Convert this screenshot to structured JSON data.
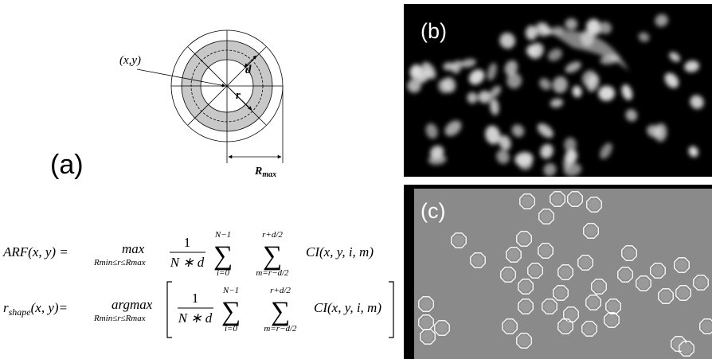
{
  "diagram": {
    "point_label": "(x,y)",
    "d_label": "d",
    "r_label": "r",
    "rmax_label": "R",
    "rmax_sub": "max",
    "panel_label": "(a)"
  },
  "panels": {
    "b": "(b)",
    "c": "(c)"
  },
  "sigma": "∑",
  "equation1": {
    "lhs": "ARF(x, y) =",
    "op": "max",
    "op_sub": "Rmin≤r≤Rmax",
    "num": "1",
    "den": "N ∗ d",
    "sum1_top": "N−1",
    "sum1_bottom": "i=0",
    "sum2_top": "r+d/2",
    "sum2_bottom": "m=r−d/2",
    "term": "CI(x, y, i, m)"
  },
  "equation2": {
    "lhs": "r",
    "lhs_sub": "shape",
    "lhs_rest": "(x, y)=",
    "op": "argmax",
    "op_sub": "Rmin≤r≤Rmax",
    "num": "1",
    "den": "N ∗ d",
    "sum1_top": "N−1",
    "sum1_bottom": "i=0",
    "sum2_top": "r+d/2",
    "sum2_bottom": "m=r−d/2",
    "term": "CI(x, y, i, m)"
  }
}
